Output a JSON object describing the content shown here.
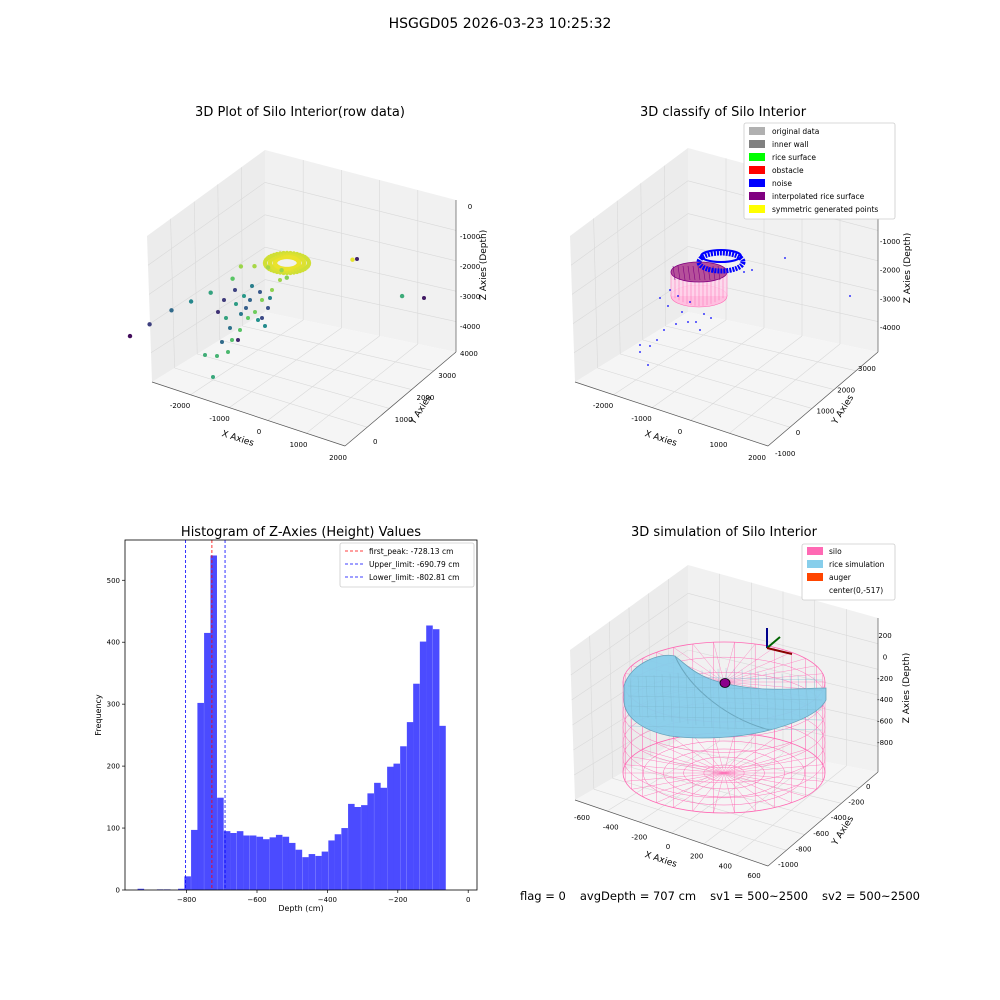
{
  "figure_title": "HSGGD05 2026-03-23 10:25:32",
  "status_line": {
    "flag": "flag = 0",
    "avg_depth": "avgDepth = 707 cm",
    "sv1": "sv1 = 500~2500",
    "sv2": "sv2 = 500~2500"
  },
  "colors": {
    "hist_bar": "#4b4bff",
    "peak_line": "#ff0000",
    "limit_line": "#0000ff",
    "silo_wire": "#ff69b4",
    "rice_surface": "#87ceeb",
    "pane_face": "#f2f2f2",
    "grid": "#d9d9d9"
  },
  "chart_data": [
    {
      "type": "scatter",
      "title": "3D Plot of Silo Interior(row data)",
      "xlabel": "X Axies",
      "ylabel": "Y Axies",
      "zlabel": "Z Axies (Depth)",
      "xticks": [
        "-2000",
        "-1000",
        "0",
        "1000",
        "2000"
      ],
      "yticks": [
        "0",
        "1000",
        "2000",
        "3000",
        "4000"
      ],
      "zticks": [
        "0",
        "-1000",
        "-2000",
        "-3000",
        "-4000"
      ],
      "colormap": "viridis",
      "points": [
        {
          "x": -250,
          "y": 2100,
          "z": -2000
        },
        {
          "x": -100,
          "y": 2200,
          "z": -1950
        },
        {
          "x": 50,
          "y": 2300,
          "z": -1950
        },
        {
          "x": 200,
          "y": 2400,
          "z": -2000
        },
        {
          "x": 300,
          "y": 2300,
          "z": -2100
        },
        {
          "x": -300,
          "y": 1900,
          "z": -2300
        },
        {
          "x": -500,
          "y": 1600,
          "z": -2700
        },
        {
          "x": -700,
          "y": 1400,
          "z": -3000
        },
        {
          "x": -900,
          "y": 1200,
          "z": -3300
        },
        {
          "x": -1100,
          "y": 900,
          "z": -3700
        },
        {
          "x": -1300,
          "y": 700,
          "z": -4100
        },
        {
          "x": 900,
          "y": 3200,
          "z": -1700
        },
        {
          "x": 1500,
          "y": 3400,
          "z": -2600
        }
      ]
    },
    {
      "type": "scatter",
      "title": "3D classify of Silo Interior",
      "xlabel": "X Axies",
      "ylabel": "Y Axies",
      "zlabel": "Z Axies (Depth)",
      "xticks": [
        "-2000",
        "-1000",
        "0",
        "1000",
        "2000"
      ],
      "yticks": [
        "-1000",
        "0",
        "1000",
        "2000",
        "3000"
      ],
      "zticks": [
        "0",
        "-1000",
        "-2000",
        "-3000",
        "-4000"
      ],
      "legend": [
        {
          "label": "original data",
          "color": "#b0b0b0"
        },
        {
          "label": "inner wall",
          "color": "#808080"
        },
        {
          "label": "rice surface",
          "color": "#00ff00"
        },
        {
          "label": "obstacle",
          "color": "#ff0000"
        },
        {
          "label": "noise",
          "color": "#0000ff"
        },
        {
          "label": "interpolated rice surface",
          "color": "#800080"
        },
        {
          "label": "symmetric generated points",
          "color": "#ffff00"
        }
      ],
      "legend_position": "upper right"
    },
    {
      "type": "bar",
      "title": "Histogram of Z-Axies (Height) Values",
      "xlabel": "Depth (cm)",
      "ylabel": "Frequency",
      "xlim": [
        -975,
        25
      ],
      "ylim": [
        0,
        565
      ],
      "xticks": [
        "-800",
        "-600",
        "-400",
        "-200",
        "0"
      ],
      "yticks": [
        "0",
        "100",
        "200",
        "300",
        "400",
        "500"
      ],
      "bin_width": 18.6,
      "bins": [
        {
          "x": -930,
          "value": 2
        },
        {
          "x": -875,
          "value": 1
        },
        {
          "x": -855,
          "value": 1
        },
        {
          "x": -815,
          "value": 2
        },
        {
          "x": -797,
          "value": 22
        },
        {
          "x": -778,
          "value": 97
        },
        {
          "x": -760,
          "value": 302
        },
        {
          "x": -741,
          "value": 415
        },
        {
          "x": -723,
          "value": 540
        },
        {
          "x": -704,
          "value": 149
        },
        {
          "x": -685,
          "value": 95
        },
        {
          "x": -667,
          "value": 92
        },
        {
          "x": -648,
          "value": 95
        },
        {
          "x": -630,
          "value": 88
        },
        {
          "x": -611,
          "value": 88
        },
        {
          "x": -592,
          "value": 86
        },
        {
          "x": -574,
          "value": 82
        },
        {
          "x": -555,
          "value": 85
        },
        {
          "x": -537,
          "value": 89
        },
        {
          "x": -518,
          "value": 86
        },
        {
          "x": -500,
          "value": 76
        },
        {
          "x": -481,
          "value": 65
        },
        {
          "x": -462,
          "value": 53
        },
        {
          "x": -444,
          "value": 58
        },
        {
          "x": -425,
          "value": 55
        },
        {
          "x": -407,
          "value": 62
        },
        {
          "x": -388,
          "value": 80
        },
        {
          "x": -370,
          "value": 90
        },
        {
          "x": -351,
          "value": 100
        },
        {
          "x": -332,
          "value": 139
        },
        {
          "x": -314,
          "value": 134
        },
        {
          "x": -295,
          "value": 137
        },
        {
          "x": -277,
          "value": 156
        },
        {
          "x": -258,
          "value": 173
        },
        {
          "x": -240,
          "value": 165
        },
        {
          "x": -221,
          "value": 199
        },
        {
          "x": -203,
          "value": 204
        },
        {
          "x": -184,
          "value": 232
        },
        {
          "x": -165,
          "value": 271
        },
        {
          "x": -147,
          "value": 333
        },
        {
          "x": -128,
          "value": 401
        },
        {
          "x": -110,
          "value": 427
        },
        {
          "x": -91,
          "value": 421
        },
        {
          "x": -73,
          "value": 265
        }
      ],
      "lines": [
        {
          "label": "first_peak: -728.13 cm",
          "x": -728.13,
          "color": "#ff0000"
        },
        {
          "label": "Upper_limit: -690.79 cm",
          "x": -690.79,
          "color": "#0000ff"
        },
        {
          "label": "Lower_limit: -802.81 cm",
          "x": -802.81,
          "color": "#0000ff"
        }
      ],
      "legend_position": "upper right"
    },
    {
      "type": "area",
      "title": "3D simulation of Silo Interior",
      "xlabel": "X Axies",
      "ylabel": "Y Axies",
      "zlabel": "Z Axies (Depth)",
      "xticks": [
        "-600",
        "-400",
        "-200",
        "0",
        "200",
        "400",
        "600"
      ],
      "yticks": [
        "0",
        "-200",
        "-400",
        "-600",
        "-800",
        "-1000"
      ],
      "zticks": [
        "200",
        "0",
        "-200",
        "-400",
        "-600",
        "-800"
      ],
      "legend": [
        {
          "label": "silo",
          "color": "#ff69b4"
        },
        {
          "label": "rice simulation",
          "color": "#87ceeb"
        },
        {
          "label": "auger",
          "color": "#ff4500"
        },
        {
          "label": "center(0,-517)",
          "color": ""
        }
      ],
      "legend_position": "upper right"
    }
  ]
}
